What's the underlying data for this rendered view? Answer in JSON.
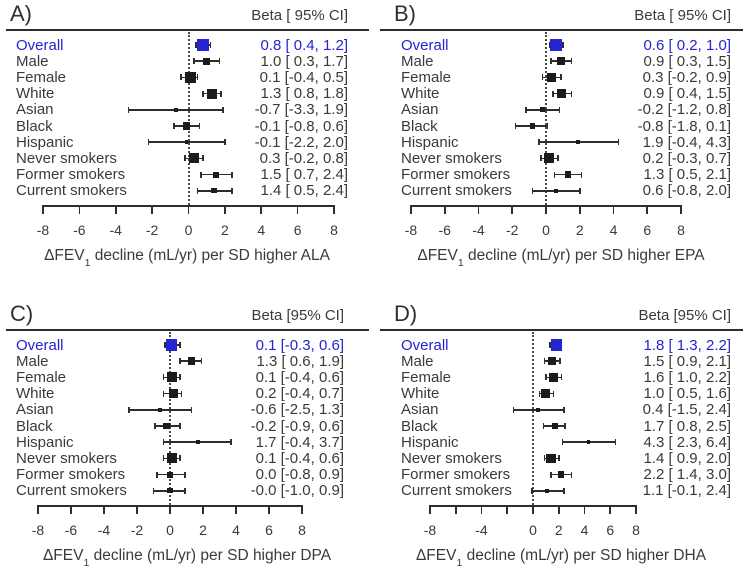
{
  "page": {
    "background": "#ffffff",
    "text_color": "#3a3a3a",
    "accent_blue": "#2424d0",
    "marker_color": "#1b1b1b"
  },
  "chart_data": [
    {
      "type": "forest",
      "panel_label": "A)",
      "ci_header": "Beta [ 95% CI]",
      "xlabel": "ΔFEV1 decline (mL/yr) per SD higher ALA",
      "xlabel_prefix": "ΔFEV",
      "xlabel_sub": "1",
      "xlabel_suffix": " decline (mL/yr) per SD higher ALA",
      "xlim": [
        -8,
        8
      ],
      "zero_line": 0,
      "grid": false,
      "ticks": [
        -8,
        -6,
        -4,
        -2,
        0,
        2,
        4,
        6,
        8
      ],
      "tick_labels": [
        "-8",
        "-6",
        "-4",
        "-2",
        "0",
        "2",
        "4",
        "6",
        "8"
      ],
      "rows": [
        {
          "label": "Overall",
          "beta": 0.8,
          "lo": 0.4,
          "hi": 1.2,
          "ci_text": "0.8 [ 0.4, 1.2]",
          "highlight": true
        },
        {
          "label": "Male",
          "beta": 1.0,
          "lo": 0.3,
          "hi": 1.7,
          "ci_text": "1.0 [ 0.3, 1.7]",
          "highlight": false
        },
        {
          "label": "Female",
          "beta": 0.1,
          "lo": -0.4,
          "hi": 0.5,
          "ci_text": "0.1 [-0.4, 0.5]",
          "highlight": false
        },
        {
          "label": "White",
          "beta": 1.3,
          "lo": 0.8,
          "hi": 1.8,
          "ci_text": "1.3 [ 0.8, 1.8]",
          "highlight": false
        },
        {
          "label": "Asian",
          "beta": -0.7,
          "lo": -3.3,
          "hi": 1.9,
          "ci_text": "-0.7 [-3.3, 1.9]",
          "highlight": false
        },
        {
          "label": "Black",
          "beta": -0.1,
          "lo": -0.8,
          "hi": 0.6,
          "ci_text": "-0.1 [-0.8, 0.6]",
          "highlight": false
        },
        {
          "label": "Hispanic",
          "beta": -0.1,
          "lo": -2.2,
          "hi": 2.0,
          "ci_text": "-0.1 [-2.2, 2.0]",
          "highlight": false
        },
        {
          "label": "Never smokers",
          "beta": 0.3,
          "lo": -0.2,
          "hi": 0.8,
          "ci_text": "0.3 [-0.2, 0.8]",
          "highlight": false
        },
        {
          "label": "Former smokers",
          "beta": 1.5,
          "lo": 0.7,
          "hi": 2.4,
          "ci_text": "1.5 [ 0.7, 2.4]",
          "highlight": false
        },
        {
          "label": "Current smokers",
          "beta": 1.4,
          "lo": 0.5,
          "hi": 2.4,
          "ci_text": "1.4 [ 0.5, 2.4]",
          "highlight": false
        }
      ]
    },
    {
      "type": "forest",
      "panel_label": "B)",
      "ci_header": "Beta [ 95% CI]",
      "xlabel": "ΔFEV1 decline (mL/yr) per SD higher EPA",
      "xlabel_prefix": "ΔFEV",
      "xlabel_sub": "1",
      "xlabel_suffix": " decline (mL/yr) per SD higher EPA",
      "xlim": [
        -8,
        8
      ],
      "zero_line": 0,
      "grid": false,
      "ticks": [
        -8,
        -6,
        -4,
        -2,
        0,
        2,
        4,
        6,
        8
      ],
      "tick_labels": [
        "-8",
        "-6",
        "-4",
        "-2",
        "0",
        "2",
        "4",
        "6",
        "8"
      ],
      "rows": [
        {
          "label": "Overall",
          "beta": 0.6,
          "lo": 0.2,
          "hi": 1.0,
          "ci_text": "0.6 [ 0.2, 1.0]",
          "highlight": true
        },
        {
          "label": "Male",
          "beta": 0.9,
          "lo": 0.3,
          "hi": 1.5,
          "ci_text": "0.9 [ 0.3, 1.5]",
          "highlight": false
        },
        {
          "label": "Female",
          "beta": 0.3,
          "lo": -0.2,
          "hi": 0.9,
          "ci_text": "0.3 [-0.2, 0.9]",
          "highlight": false
        },
        {
          "label": "White",
          "beta": 0.9,
          "lo": 0.4,
          "hi": 1.5,
          "ci_text": "0.9 [ 0.4, 1.5]",
          "highlight": false
        },
        {
          "label": "Asian",
          "beta": -0.2,
          "lo": -1.2,
          "hi": 0.8,
          "ci_text": "-0.2 [-1.2, 0.8]",
          "highlight": false
        },
        {
          "label": "Black",
          "beta": -0.8,
          "lo": -1.8,
          "hi": 0.1,
          "ci_text": "-0.8 [-1.8, 0.1]",
          "highlight": false
        },
        {
          "label": "Hispanic",
          "beta": 1.9,
          "lo": -0.4,
          "hi": 4.3,
          "ci_text": "1.9 [-0.4, 4.3]",
          "highlight": false
        },
        {
          "label": "Never smokers",
          "beta": 0.2,
          "lo": -0.3,
          "hi": 0.7,
          "ci_text": "0.2 [-0.3, 0.7]",
          "highlight": false
        },
        {
          "label": "Former smokers",
          "beta": 1.3,
          "lo": 0.5,
          "hi": 2.1,
          "ci_text": "1.3 [ 0.5, 2.1]",
          "highlight": false
        },
        {
          "label": "Current smokers",
          "beta": 0.6,
          "lo": -0.8,
          "hi": 2.0,
          "ci_text": "0.6 [-0.8, 2.0]",
          "highlight": false
        }
      ]
    },
    {
      "type": "forest",
      "panel_label": "C)",
      "ci_header": "Beta [95% CI]",
      "xlabel": "ΔFEV1 decline (mL/yr) per SD higher DPA",
      "xlabel_prefix": "ΔFEV",
      "xlabel_sub": "1",
      "xlabel_suffix": " decline (mL/yr) per SD higher DPA",
      "xlim": [
        -8,
        8
      ],
      "zero_line": 0,
      "grid": false,
      "ticks": [
        -8,
        -6,
        -4,
        -2,
        0,
        2,
        4,
        6,
        8
      ],
      "tick_labels": [
        "-8",
        "-6",
        "-4",
        "-2",
        "0",
        "2",
        "4",
        "6",
        "8"
      ],
      "rows": [
        {
          "label": "Overall",
          "beta": 0.1,
          "lo": -0.3,
          "hi": 0.6,
          "ci_text": "0.1 [-0.3, 0.6]",
          "highlight": true
        },
        {
          "label": "Male",
          "beta": 1.3,
          "lo": 0.6,
          "hi": 1.9,
          "ci_text": "1.3 [ 0.6, 1.9]",
          "highlight": false
        },
        {
          "label": "Female",
          "beta": 0.1,
          "lo": -0.4,
          "hi": 0.6,
          "ci_text": "0.1 [-0.4, 0.6]",
          "highlight": false
        },
        {
          "label": "White",
          "beta": 0.2,
          "lo": -0.4,
          "hi": 0.7,
          "ci_text": "0.2 [-0.4, 0.7]",
          "highlight": false
        },
        {
          "label": "Asian",
          "beta": -0.6,
          "lo": -2.5,
          "hi": 1.3,
          "ci_text": "-0.6 [-2.5, 1.3]",
          "highlight": false
        },
        {
          "label": "Black",
          "beta": -0.2,
          "lo": -0.9,
          "hi": 0.6,
          "ci_text": "-0.2 [-0.9, 0.6]",
          "highlight": false
        },
        {
          "label": "Hispanic",
          "beta": 1.7,
          "lo": -0.4,
          "hi": 3.7,
          "ci_text": "1.7 [-0.4, 3.7]",
          "highlight": false
        },
        {
          "label": "Never smokers",
          "beta": 0.1,
          "lo": -0.4,
          "hi": 0.6,
          "ci_text": "0.1 [-0.4, 0.6]",
          "highlight": false
        },
        {
          "label": "Former smokers",
          "beta": 0.0,
          "lo": -0.8,
          "hi": 0.9,
          "ci_text": "0.0 [-0.8, 0.9]",
          "highlight": false
        },
        {
          "label": "Current smokers",
          "beta": 0.0,
          "lo": -1.0,
          "hi": 0.9,
          "ci_text": "-0.0 [-1.0, 0.9]",
          "highlight": false
        }
      ]
    },
    {
      "type": "forest",
      "panel_label": "D)",
      "ci_header": "Beta [95% CI]",
      "xlabel": "ΔFEV1 decline (mL/yr) per SD higher DHA",
      "xlabel_prefix": "ΔFEV",
      "xlabel_sub": "1",
      "xlabel_suffix": " decline (mL/yr) per SD higher DHA",
      "xlim": [
        -8,
        8
      ],
      "zero_line": 0,
      "grid": false,
      "ticks": [
        -8,
        -6,
        -4,
        -2,
        0,
        2,
        4,
        6,
        8
      ],
      "tick_labels": [
        "-8",
        "",
        "-4",
        "",
        "0",
        "2",
        "4",
        "6",
        "8"
      ],
      "rows": [
        {
          "label": "Overall",
          "beta": 1.8,
          "lo": 1.3,
          "hi": 2.2,
          "ci_text": "1.8 [ 1.3, 2.2]",
          "highlight": true
        },
        {
          "label": "Male",
          "beta": 1.5,
          "lo": 0.9,
          "hi": 2.1,
          "ci_text": "1.5 [ 0.9, 2.1]",
          "highlight": false
        },
        {
          "label": "Female",
          "beta": 1.6,
          "lo": 1.0,
          "hi": 2.2,
          "ci_text": "1.6 [ 1.0, 2.2]",
          "highlight": false
        },
        {
          "label": "White",
          "beta": 1.0,
          "lo": 0.5,
          "hi": 1.6,
          "ci_text": "1.0 [ 0.5, 1.6]",
          "highlight": false
        },
        {
          "label": "Asian",
          "beta": 0.4,
          "lo": -1.5,
          "hi": 2.4,
          "ci_text": "0.4 [-1.5, 2.4]",
          "highlight": false
        },
        {
          "label": "Black",
          "beta": 1.7,
          "lo": 0.8,
          "hi": 2.5,
          "ci_text": "1.7 [ 0.8, 2.5]",
          "highlight": false
        },
        {
          "label": "Hispanic",
          "beta": 4.3,
          "lo": 2.3,
          "hi": 6.4,
          "ci_text": "4.3 [ 2.3, 6.4]",
          "highlight": false
        },
        {
          "label": "Never smokers",
          "beta": 1.4,
          "lo": 0.9,
          "hi": 2.0,
          "ci_text": "1.4 [ 0.9, 2.0]",
          "highlight": false
        },
        {
          "label": "Former smokers",
          "beta": 2.2,
          "lo": 1.4,
          "hi": 3.0,
          "ci_text": "2.2 [ 1.4, 3.0]",
          "highlight": false
        },
        {
          "label": "Current smokers",
          "beta": 1.1,
          "lo": -0.1,
          "hi": 2.4,
          "ci_text": "1.1 [-0.1, 2.4]",
          "highlight": false
        }
      ]
    }
  ]
}
